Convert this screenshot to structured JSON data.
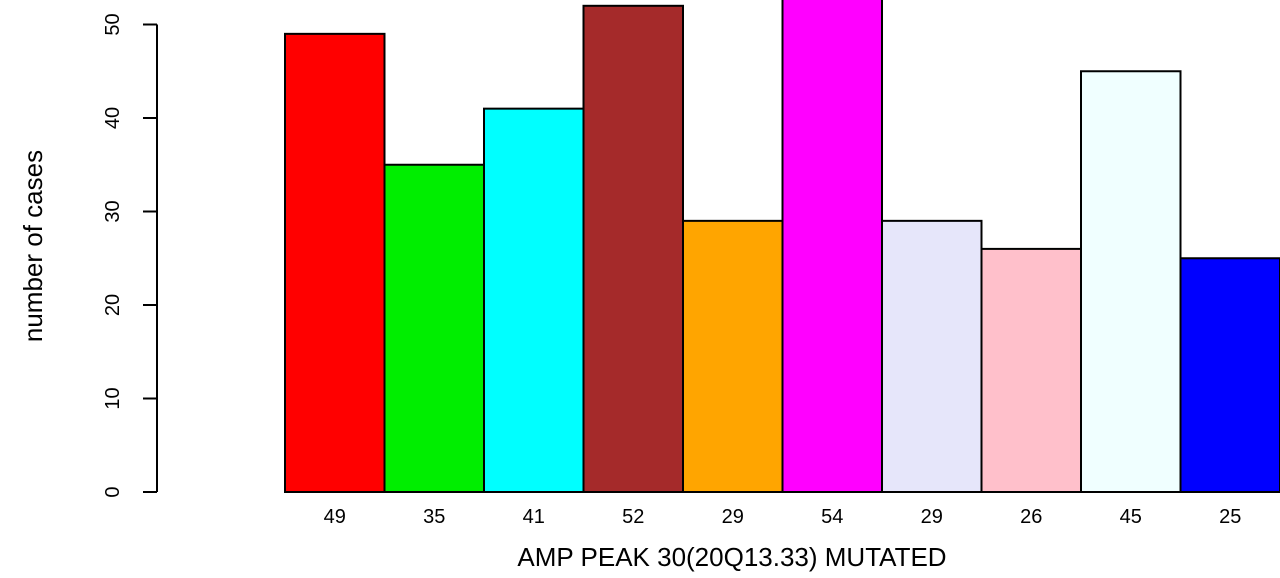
{
  "chart_data": {
    "type": "bar",
    "title": "",
    "xlabel": "AMP PEAK 30(20Q13.33) MUTATED",
    "ylabel": "number of cases",
    "ylim": [
      0,
      52
    ],
    "yticks": [
      0,
      10,
      20,
      30,
      40,
      50
    ],
    "categories": [
      "49",
      "35",
      "41",
      "52",
      "29",
      "54",
      "29",
      "26",
      "45",
      "25"
    ],
    "values": [
      49,
      35,
      41,
      52,
      29,
      54,
      29,
      26,
      45,
      25
    ],
    "colors": [
      "#ff0000",
      "#00ee00",
      "#00ffff",
      "#a52a2a",
      "#ffa500",
      "#ff00ff",
      "#e6e6fa",
      "#ffc0cb",
      "#f0ffff",
      "#0000ff"
    ],
    "grid": false,
    "legend": "none"
  }
}
